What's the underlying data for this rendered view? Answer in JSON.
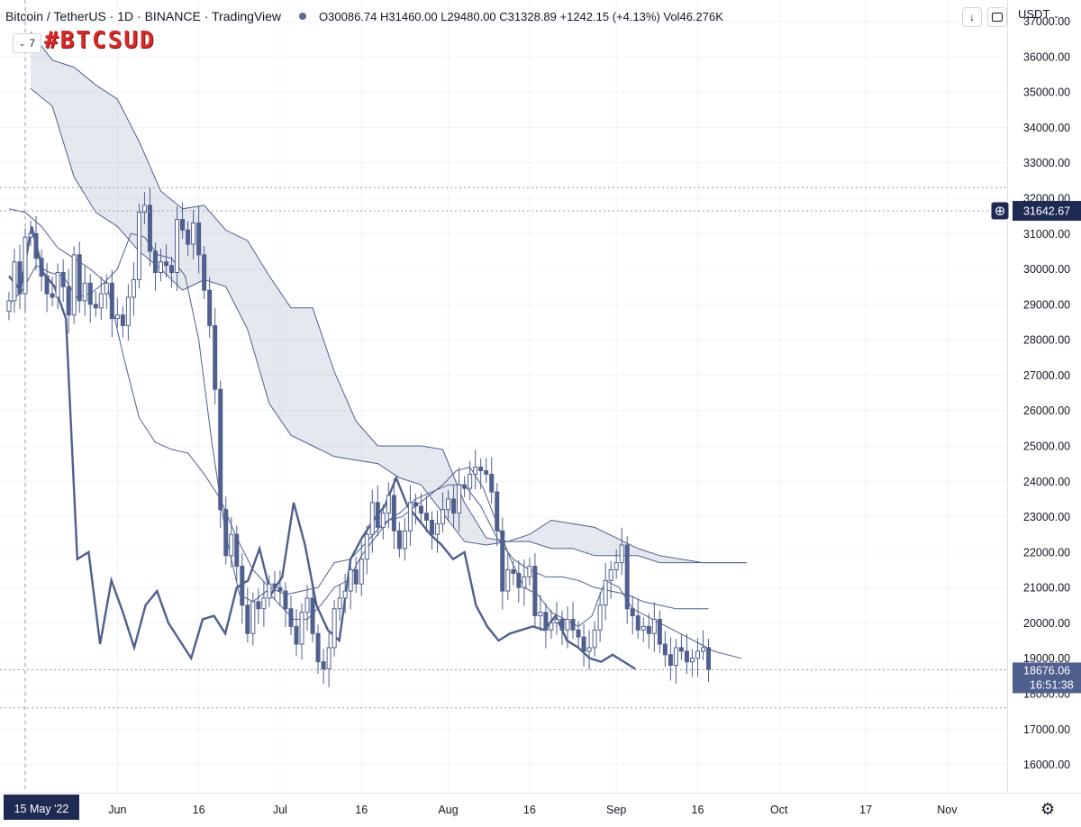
{
  "header": {
    "symbol": "Bitcoin / TetherUS · 1D · BINANCE · TradingView",
    "ohlc": "O30086.74 H31460.00 L29480.00 C31328.89 +1242.15 (+4.13%) Vol46.276K",
    "indicators_count": "7",
    "currency": "USDT",
    "tag": "#BTCSUD"
  },
  "colors": {
    "candle": "#4f5f8e",
    "line": "#4f5f8e",
    "cloud": "rgba(110,125,160,0.18)",
    "accent": "#1e2a52"
  },
  "chart_data": {
    "type": "candlestick",
    "symbol": "BTCUSDT",
    "ylim": [
      15200,
      37600
    ],
    "y_ticks": [
      16000,
      17000,
      18000,
      19000,
      20000,
      21000,
      22000,
      23000,
      24000,
      25000,
      26000,
      27000,
      28000,
      29000,
      30000,
      31000,
      32000,
      33000,
      34000,
      35000,
      36000,
      37000
    ],
    "x_ticks": [
      {
        "label": "15 May '22",
        "date": "2022-05-15"
      },
      {
        "label": "Jun",
        "date": "2022-06-01"
      },
      {
        "label": "16",
        "date": "2022-06-16"
      },
      {
        "label": "Jul",
        "date": "2022-07-01"
      },
      {
        "label": "16",
        "date": "2022-07-16"
      },
      {
        "label": "Aug",
        "date": "2022-08-01"
      },
      {
        "label": "16",
        "date": "2022-08-16"
      },
      {
        "label": "Sep",
        "date": "2022-09-01"
      },
      {
        "label": "16",
        "date": "2022-09-16"
      },
      {
        "label": "Oct",
        "date": "2022-10-01"
      },
      {
        "label": "17",
        "date": "2022-10-17"
      },
      {
        "label": "Nov",
        "date": "2022-11-01"
      }
    ],
    "price_labels": [
      {
        "value": "31642.67",
        "time": ""
      },
      {
        "value": "18676.06",
        "time": "16:51:38"
      }
    ],
    "horizontal_levels": [
      31642.67,
      18676.06,
      32300,
      17600
    ],
    "candles_start": "2022-05-12",
    "close_path": [
      29100,
      30200,
      29300,
      30900,
      31000,
      30300,
      29800,
      29300,
      29200,
      29900,
      29500,
      28700,
      30400,
      29100,
      29600,
      29000,
      28900,
      29300,
      29600,
      28600,
      28700,
      28400,
      29200,
      29700,
      31600,
      31800,
      30500,
      29900,
      30200,
      30100,
      29900,
      31400,
      31100,
      30700,
      31300,
      30400,
      29400,
      28400,
      26600,
      23200,
      21900,
      22500,
      21600,
      20500,
      19700,
      20600,
      20400,
      20700,
      21100,
      21000,
      20900,
      20400,
      19900,
      19400,
      20300,
      20700,
      19700,
      18900,
      18700,
      19300,
      20400,
      20700,
      20900,
      21500,
      21100,
      21800,
      22500,
      23400,
      22700,
      23100,
      23600,
      22600,
      22100,
      22600,
      23400,
      23300,
      23100,
      22900,
      22500,
      22800,
      23200,
      23500,
      23100,
      23900,
      23800,
      24200,
      24400,
      24300,
      24200,
      23700,
      22600,
      20900,
      21500,
      21400,
      21000,
      21300,
      21600,
      20200,
      20300,
      19800,
      20000,
      20100,
      19800,
      20100,
      19800,
      19600,
      19200,
      19300,
      19800,
      20500,
      21200,
      21500,
      21700,
      22200,
      20400,
      20200,
      19800,
      19900,
      19700,
      20100,
      19400,
      19100,
      18800,
      19300,
      19200,
      18900,
      19000,
      19200,
      19300,
      18676
    ],
    "ichimoku": {
      "tenkan": [
        29000,
        29400,
        30100,
        29900,
        29800,
        29200,
        29300,
        29600,
        30000,
        31000,
        30900,
        30400,
        30300,
        29800,
        28000,
        25000,
        22500,
        20800,
        20600,
        20900,
        20500,
        20100,
        20100,
        20500,
        21000,
        21200,
        21900,
        22400,
        22900,
        23000,
        23300,
        23600,
        23900,
        24300,
        24400,
        23800,
        22800,
        21800,
        21000,
        20800,
        20300,
        20100,
        19900,
        20200,
        21200,
        21000,
        20400,
        20200,
        20000,
        19800,
        19600,
        19400,
        19200,
        19100,
        19000
      ],
      "kijun": [
        31700,
        31600,
        31200,
        30600,
        30300,
        30000,
        29600,
        27600,
        25800,
        25100,
        24900,
        24800,
        24200,
        23500,
        22400,
        21500,
        21000,
        20800,
        20900,
        21000,
        21700,
        21800,
        22300,
        22800,
        23100,
        23500,
        23700,
        23900,
        23900,
        23300,
        22400,
        21800,
        21500,
        21300,
        21300,
        21200,
        21000,
        20900,
        20800,
        20600,
        20500,
        20400,
        20400,
        20400
      ],
      "chikou": [
        29800,
        29400,
        31200,
        29900,
        29500,
        28600,
        21800,
        22000,
        19400,
        21200,
        20300,
        19300,
        20500,
        20900,
        20000,
        19500,
        19000,
        20100,
        20200,
        19700,
        21000,
        21200,
        22100,
        20800,
        21300,
        23400,
        22200,
        20500,
        19800,
        19500,
        21800,
        22400,
        22900,
        23300,
        24100,
        23300,
        22900,
        22500,
        22200,
        21800,
        22000,
        20500,
        19900,
        19500,
        19700,
        19800,
        19900,
        19800,
        20200,
        19500,
        19300,
        19000,
        18900,
        19100,
        18900,
        18700
      ],
      "span_a": [
        35100,
        34600,
        32600,
        31600,
        31200,
        30500,
        30000,
        29400,
        29700,
        29500,
        28300,
        26200,
        25300,
        25000,
        24700,
        24600,
        24500,
        24100,
        23900,
        23100,
        22300,
        22200,
        22300,
        22500,
        22900,
        22800,
        22700,
        22400,
        22100,
        21900,
        21800,
        21700,
        21700,
        21700
      ],
      "span_b": [
        36700,
        35900,
        35700,
        35200,
        34800,
        33600,
        32200,
        31700,
        31800,
        31100,
        30800,
        29800,
        28900,
        28900,
        27100,
        25700,
        25000,
        25000,
        25000,
        24900,
        23400,
        22400,
        22300,
        22300,
        22100,
        22100,
        21900,
        21900,
        21900,
        21700,
        21700,
        21700,
        21700,
        21700
      ]
    }
  }
}
